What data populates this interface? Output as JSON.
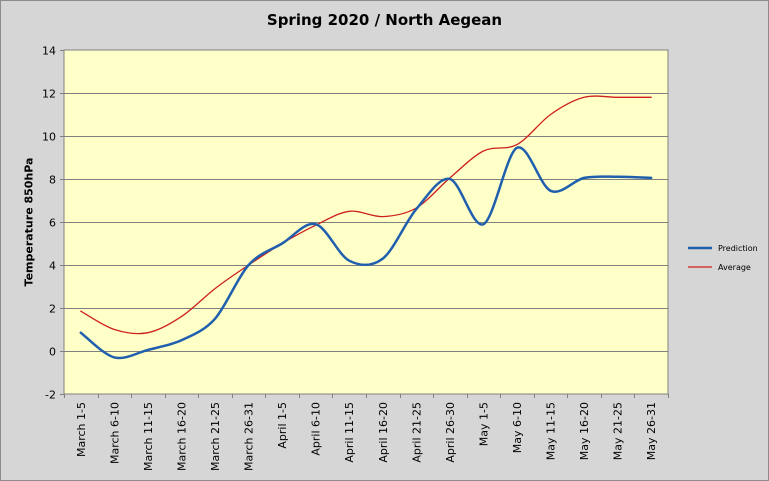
{
  "chart_data": {
    "type": "line",
    "title": "Spring 2020 / North Aegean",
    "xlabel": "",
    "ylabel": "Temperature 850hPa",
    "ylim": [
      -2,
      14
    ],
    "yticks": [
      -2,
      0,
      2,
      4,
      6,
      8,
      10,
      12,
      14
    ],
    "grid": true,
    "legend": "right",
    "categories": [
      "March 1-5",
      "March 6-10",
      "March 11-15",
      "March 16-20",
      "March 21-25",
      "March 26-31",
      "April 1-5",
      "April 6-10",
      "April 11-15",
      "April 16-20",
      "April 21-25",
      "April 26-30",
      "May 1-5",
      "May 6-10",
      "May 11-15",
      "May 16-20",
      "May 21-25",
      "May 26-31"
    ],
    "series": [
      {
        "name": "Prediction",
        "color": "#1f5fae",
        "values": [
          0.85,
          -0.3,
          0.05,
          0.5,
          1.5,
          4.0,
          5.0,
          5.9,
          4.2,
          4.3,
          6.6,
          8.0,
          5.9,
          9.45,
          7.45,
          8.05,
          8.1,
          8.05
        ]
      },
      {
        "name": "Average",
        "color": "#cc1f1f",
        "values": [
          1.85,
          1.0,
          0.85,
          1.6,
          2.9,
          4.0,
          5.0,
          5.85,
          6.5,
          6.25,
          6.65,
          8.05,
          9.3,
          9.6,
          11.0,
          11.8,
          11.8,
          11.8
        ]
      }
    ]
  },
  "plot_bg": "#ffffc8",
  "outer_bg": "#d6d6d6",
  "grid_color": "#808080"
}
